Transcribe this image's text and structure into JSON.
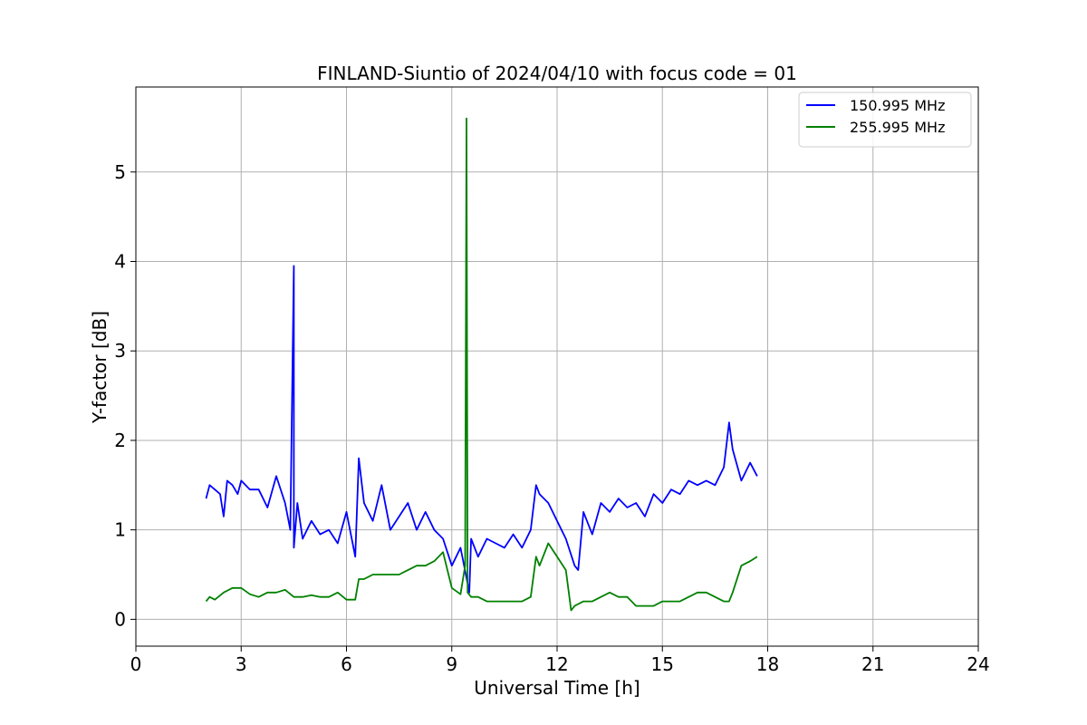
{
  "chart_data": {
    "type": "line",
    "title": "FINLAND-Siuntio of 2024/04/10 with focus code = 01",
    "xlabel": "Universal Time [h]",
    "ylabel": "Y-factor [dB]",
    "xlim": [
      0,
      24
    ],
    "ylim": [
      -0.3,
      5.95
    ],
    "x_ticks": [
      0,
      3,
      6,
      9,
      12,
      15,
      18,
      21,
      24
    ],
    "y_ticks": [
      0,
      1,
      2,
      3,
      4,
      5
    ],
    "grid": true,
    "legend_position": "top-right",
    "series": [
      {
        "name": "150.995 MHz",
        "color": "#0000ff",
        "x": [
          2.0,
          2.1,
          2.25,
          2.4,
          2.5,
          2.6,
          2.75,
          2.9,
          3.0,
          3.25,
          3.5,
          3.75,
          4.0,
          4.25,
          4.4,
          4.5,
          4.5,
          4.5,
          4.6,
          4.75,
          5.0,
          5.25,
          5.5,
          5.75,
          6.0,
          6.25,
          6.35,
          6.5,
          6.75,
          7.0,
          7.25,
          7.5,
          7.75,
          8.0,
          8.25,
          8.5,
          8.75,
          9.0,
          9.25,
          9.4,
          9.5,
          9.55,
          9.75,
          10.0,
          10.25,
          10.5,
          10.75,
          11.0,
          11.25,
          11.4,
          11.5,
          11.75,
          12.0,
          12.25,
          12.5,
          12.6,
          12.75,
          13.0,
          13.25,
          13.5,
          13.75,
          14.0,
          14.25,
          14.5,
          14.75,
          15.0,
          15.25,
          15.5,
          15.75,
          16.0,
          16.25,
          16.5,
          16.75,
          16.9,
          17.0,
          17.25,
          17.5,
          17.7
        ],
        "y": [
          1.35,
          1.5,
          1.45,
          1.4,
          1.15,
          1.55,
          1.5,
          1.4,
          1.55,
          1.45,
          1.45,
          1.25,
          1.6,
          1.3,
          1.0,
          3.95,
          1.2,
          0.8,
          1.3,
          0.9,
          1.1,
          0.95,
          1.0,
          0.85,
          1.2,
          0.7,
          1.8,
          1.3,
          1.1,
          1.5,
          1.0,
          1.15,
          1.3,
          1.0,
          1.2,
          1.0,
          0.9,
          0.6,
          0.8,
          0.5,
          0.3,
          0.9,
          0.7,
          0.9,
          0.85,
          0.8,
          0.95,
          0.8,
          1.0,
          1.5,
          1.4,
          1.3,
          1.1,
          0.9,
          0.6,
          0.55,
          1.2,
          0.95,
          1.3,
          1.2,
          1.35,
          1.25,
          1.3,
          1.15,
          1.4,
          1.3,
          1.45,
          1.4,
          1.55,
          1.5,
          1.55,
          1.5,
          1.7,
          2.2,
          1.9,
          1.55,
          1.75,
          1.6
        ]
      },
      {
        "name": "255.995 MHz",
        "color": "#008000",
        "x": [
          2.0,
          2.1,
          2.25,
          2.5,
          2.75,
          3.0,
          3.25,
          3.5,
          3.75,
          4.0,
          4.25,
          4.5,
          4.75,
          5.0,
          5.25,
          5.5,
          5.75,
          6.0,
          6.25,
          6.35,
          6.5,
          6.75,
          7.0,
          7.25,
          7.5,
          7.75,
          8.0,
          8.25,
          8.5,
          8.75,
          9.0,
          9.25,
          9.38,
          9.42,
          9.45,
          9.55,
          9.75,
          10.0,
          10.25,
          10.5,
          10.75,
          11.0,
          11.25,
          11.4,
          11.5,
          11.75,
          12.0,
          12.25,
          12.4,
          12.5,
          12.75,
          13.0,
          13.25,
          13.5,
          13.75,
          14.0,
          14.25,
          14.5,
          14.75,
          15.0,
          15.25,
          15.5,
          15.75,
          16.0,
          16.25,
          16.5,
          16.75,
          16.9,
          17.0,
          17.25,
          17.5,
          17.7
        ],
        "y": [
          0.2,
          0.25,
          0.22,
          0.3,
          0.35,
          0.35,
          0.28,
          0.25,
          0.3,
          0.3,
          0.33,
          0.25,
          0.25,
          0.27,
          0.25,
          0.25,
          0.3,
          0.22,
          0.22,
          0.45,
          0.45,
          0.5,
          0.5,
          0.5,
          0.5,
          0.55,
          0.6,
          0.6,
          0.65,
          0.75,
          0.35,
          0.28,
          0.6,
          5.6,
          0.3,
          0.25,
          0.25,
          0.2,
          0.2,
          0.2,
          0.2,
          0.2,
          0.25,
          0.7,
          0.6,
          0.85,
          0.7,
          0.55,
          0.1,
          0.15,
          0.2,
          0.2,
          0.25,
          0.3,
          0.25,
          0.25,
          0.15,
          0.15,
          0.15,
          0.2,
          0.2,
          0.2,
          0.25,
          0.3,
          0.3,
          0.25,
          0.2,
          0.2,
          0.3,
          0.6,
          0.65,
          0.7
        ]
      }
    ]
  }
}
